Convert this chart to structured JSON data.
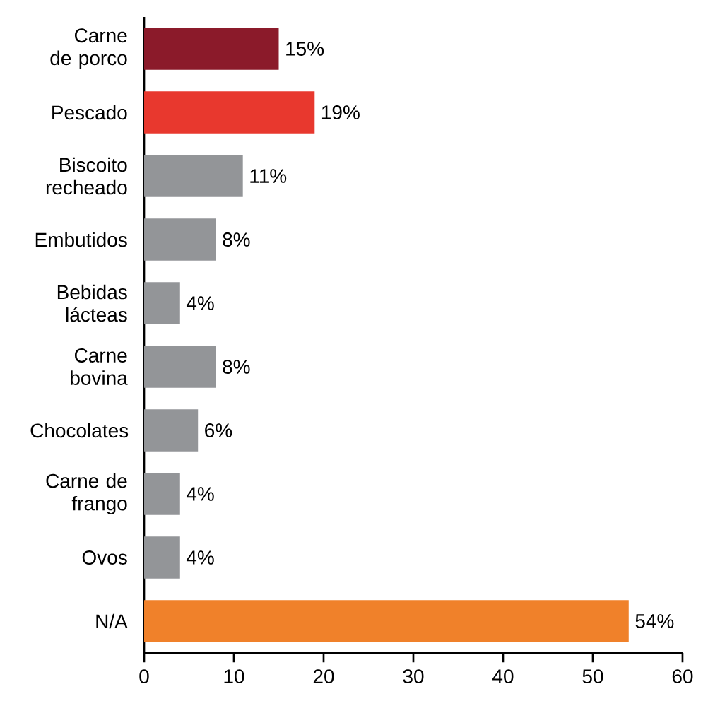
{
  "chart_data": {
    "type": "bar",
    "orientation": "horizontal",
    "categories": [
      "Carne de porco",
      "Pescado",
      "Biscoito recheado",
      "Embutidos",
      "Bebidas lácteas",
      "Carne bovina",
      "Chocolates",
      "Carne de frango",
      "Ovos",
      "N/A"
    ],
    "values": [
      15,
      19,
      11,
      8,
      4,
      8,
      6,
      4,
      4,
      54
    ],
    "value_labels": [
      "15%",
      "19%",
      "11%",
      "8%",
      "4%",
      "8%",
      "6%",
      "4%",
      "4%",
      "54%"
    ],
    "colors": [
      "#8b1a2a",
      "#e8382e",
      "#939598",
      "#939598",
      "#939598",
      "#939598",
      "#939598",
      "#939598",
      "#939598",
      "#f0812a"
    ],
    "xlim": [
      0,
      60
    ],
    "xticks": [
      0,
      10,
      20,
      30,
      40,
      50,
      60
    ],
    "grid": false
  }
}
